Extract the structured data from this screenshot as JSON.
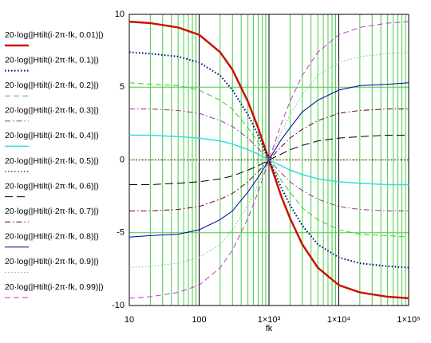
{
  "chart_data": {
    "type": "line",
    "xlabel": "fk",
    "xscale": "log",
    "x": [
      10,
      20,
      50,
      100,
      200,
      300,
      500,
      700,
      1000,
      1500,
      2000,
      3000,
      5000,
      10000,
      20000,
      50000,
      100000
    ],
    "xlim": [
      10,
      100000
    ],
    "xticks": [
      10,
      100,
      {
        "value": 1000,
        "label": "1×10³"
      },
      {
        "value": 10000,
        "label": "1×10⁴"
      },
      {
        "value": 100000,
        "label": "1×10⁵"
      }
    ],
    "xminorticks": [
      20,
      30,
      40,
      50,
      60,
      70,
      80,
      90,
      200,
      300,
      400,
      500,
      600,
      700,
      800,
      900,
      2000,
      3000,
      4000,
      5000,
      6000,
      7000,
      8000,
      9000,
      20000,
      30000,
      40000,
      50000,
      60000,
      70000,
      80000,
      90000
    ],
    "ylim": [
      -10,
      10
    ],
    "yticks": [
      10,
      5,
      0,
      -5,
      -10
    ],
    "grid": true,
    "legend": "left",
    "series": [
      {
        "name": "20·log(|Htilt(i·2π·fk, 0.01)|)",
        "color": "#cc1100",
        "style": "solid",
        "width": 2.5,
        "values": [
          9.5,
          9.4,
          9.1,
          8.6,
          7.4,
          6.2,
          4.0,
          2.2,
          0,
          -2.5,
          -4.0,
          -5.8,
          -7.4,
          -8.6,
          -9.1,
          -9.4,
          -9.5
        ]
      },
      {
        "name": "20·log(|Htilt(i·2π·fk, 0.1)|)",
        "color": "#000080",
        "style": "dotted",
        "width": 2,
        "values": [
          7.4,
          7.3,
          7.1,
          6.7,
          5.8,
          4.8,
          3.1,
          1.7,
          0,
          -1.9,
          -3.1,
          -4.5,
          -5.8,
          -6.7,
          -7.1,
          -7.3,
          -7.4
        ]
      },
      {
        "name": "20·log(|Htilt(i·2π·fk, 0.2)|)",
        "color": "#33cc33",
        "style": "dashed",
        "width": 1,
        "values": [
          5.3,
          5.2,
          5.1,
          4.8,
          4.1,
          3.5,
          2.2,
          1.2,
          0,
          -1.4,
          -2.2,
          -3.3,
          -4.1,
          -4.8,
          -5.1,
          -5.2,
          -5.3
        ]
      },
      {
        "name": "20·log(|Htilt(i·2π·fk, 0.3)|)",
        "color": "#993399",
        "style": "dashdot",
        "width": 1,
        "values": [
          3.5,
          3.5,
          3.4,
          3.2,
          2.7,
          2.3,
          1.5,
          0.8,
          0,
          -0.9,
          -1.5,
          -2.1,
          -2.7,
          -3.2,
          -3.4,
          -3.5,
          -3.5
        ]
      },
      {
        "name": "20·log(|Htilt(i·2π·fk, 0.4)|)",
        "color": "#33dddd",
        "style": "solid",
        "width": 1.5,
        "values": [
          1.7,
          1.7,
          1.6,
          1.5,
          1.3,
          1.1,
          0.7,
          0.4,
          0,
          -0.4,
          -0.7,
          -1.0,
          -1.3,
          -1.5,
          -1.6,
          -1.7,
          -1.7
        ]
      },
      {
        "name": "20·log(|Htilt(i·2π·fk, 0.5)|)",
        "color": "#336600",
        "style": "dotted",
        "width": 1.5,
        "values": [
          0,
          0,
          0,
          0,
          0,
          0,
          0,
          0,
          0,
          0,
          0,
          0,
          0,
          0,
          0,
          0,
          0
        ]
      },
      {
        "name": "20·log(|Htilt(i·2π·fk, 0.6)|)",
        "color": "#000000",
        "style": "longdash",
        "width": 1,
        "values": [
          -1.7,
          -1.7,
          -1.6,
          -1.5,
          -1.3,
          -1.1,
          -0.7,
          -0.4,
          0,
          0.4,
          0.7,
          1.0,
          1.3,
          1.5,
          1.6,
          1.7,
          1.7
        ]
      },
      {
        "name": "20·log(|Htilt(i·2π·fk, 0.7)|)",
        "color": "#660033",
        "style": "dashdot",
        "width": 1,
        "values": [
          -3.5,
          -3.5,
          -3.4,
          -3.2,
          -2.7,
          -2.3,
          -1.5,
          -0.8,
          0,
          0.9,
          1.5,
          2.1,
          2.7,
          3.2,
          3.4,
          3.5,
          3.5
        ]
      },
      {
        "name": "20·log(|Htilt(i·2π·fk, 0.8)|)",
        "color": "#000099",
        "style": "solid",
        "width": 1,
        "values": [
          -5.3,
          -5.2,
          -5.1,
          -4.8,
          -4.1,
          -3.5,
          -2.2,
          -1.2,
          0,
          1.4,
          2.2,
          3.3,
          4.1,
          4.8,
          5.1,
          5.2,
          5.3
        ]
      },
      {
        "name": "20·log(|Htilt(i·2π·fk, 0.9)|)",
        "color": "#66cc66",
        "style": "dotted",
        "width": 1,
        "values": [
          -7.4,
          -7.3,
          -7.1,
          -6.7,
          -5.8,
          -4.8,
          -3.1,
          -1.7,
          0,
          1.9,
          3.1,
          4.5,
          5.8,
          6.7,
          7.1,
          7.3,
          7.4
        ]
      },
      {
        "name": "20·log(|Htilt(i·2π·fk, 0.99)|)",
        "color": "#cc33cc",
        "style": "dashed",
        "width": 1,
        "values": [
          -9.5,
          -9.4,
          -9.1,
          -8.6,
          -7.4,
          -6.2,
          -4.0,
          -2.2,
          0,
          2.5,
          4.0,
          5.8,
          7.4,
          8.6,
          9.1,
          9.4,
          9.5
        ]
      }
    ]
  }
}
